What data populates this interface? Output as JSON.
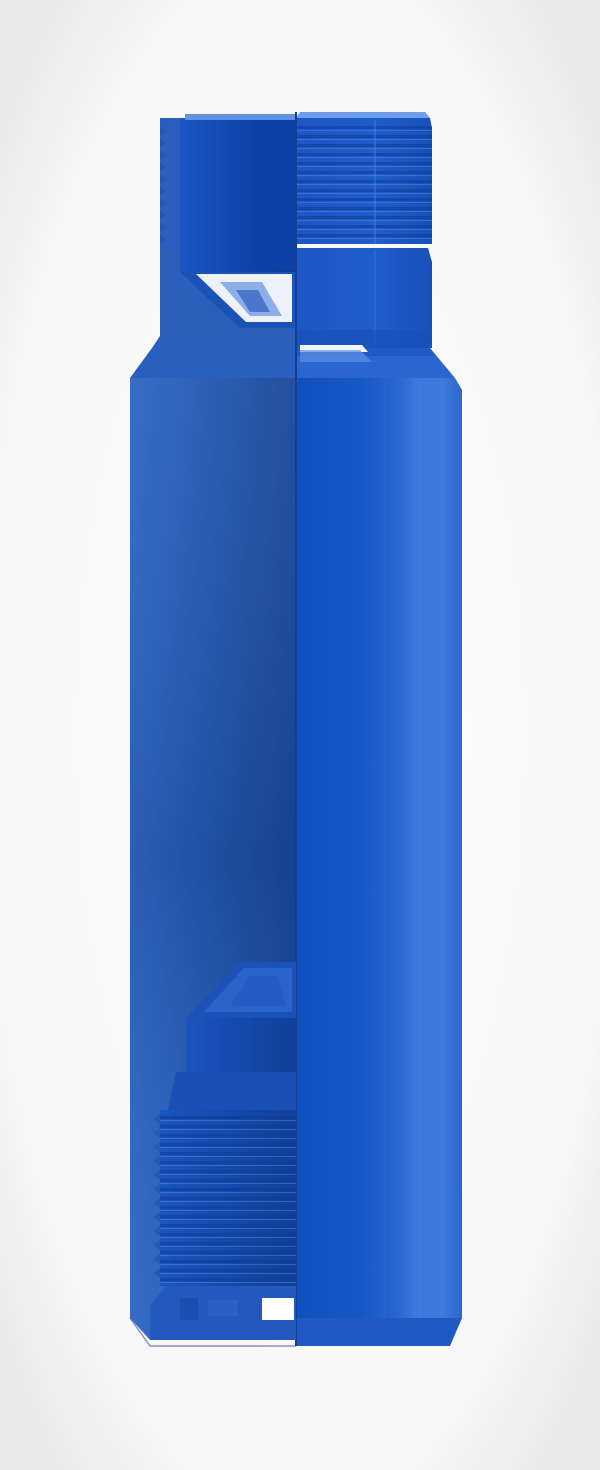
{
  "image": {
    "subject": "blue-threaded-crossover-sub-cutaway",
    "colors": {
      "background_center": "#ffffff",
      "background_edge": "#ececec",
      "body_light": "#3b78d8",
      "body_mid": "#1456c2",
      "body_dark": "#0b3f99",
      "cut_face": "#2157b8",
      "highlight": "#6b98e8",
      "shadow": "#0a3278"
    }
  }
}
